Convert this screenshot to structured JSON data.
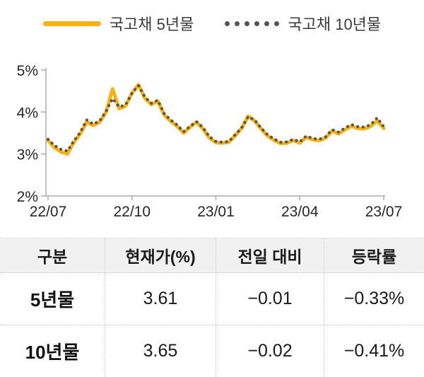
{
  "legend": {
    "series1_label": "국고채 5년물",
    "series2_label": "국고채 10년물"
  },
  "colors": {
    "accent_yellow": "#F8B312",
    "dot_gray": "#57534E",
    "axis_gray": "#ABABAB",
    "text_dark": "#262626",
    "header_bg": "#F1F1F1"
  },
  "chart_data": {
    "type": "line",
    "title": "",
    "xlabel": "",
    "ylabel": "",
    "ylim": [
      2,
      5
    ],
    "grid": false,
    "legend_position": "top",
    "x_tick_labels": [
      "22/07",
      "22/10",
      "23/01",
      "23/04",
      "23/07"
    ],
    "y_tick_labels": [
      "5%",
      "4%",
      "3%",
      "2%"
    ],
    "series": [
      {
        "name": "국고채 5년물",
        "style": "solid",
        "color": "#F8B312",
        "values": [
          3.32,
          3.15,
          3.05,
          3.0,
          3.28,
          3.48,
          3.76,
          3.68,
          3.76,
          4.0,
          4.55,
          4.08,
          4.14,
          4.45,
          4.65,
          4.33,
          4.18,
          4.26,
          3.93,
          3.78,
          3.66,
          3.5,
          3.64,
          3.76,
          3.6,
          3.38,
          3.27,
          3.26,
          3.28,
          3.44,
          3.61,
          3.9,
          3.79,
          3.6,
          3.43,
          3.33,
          3.25,
          3.26,
          3.32,
          3.26,
          3.4,
          3.34,
          3.32,
          3.38,
          3.55,
          3.48,
          3.58,
          3.66,
          3.61,
          3.6,
          3.66,
          3.79,
          3.61
        ]
      },
      {
        "name": "국고채 10년물",
        "style": "dotted",
        "color": "#57534E",
        "values": [
          3.35,
          3.2,
          3.11,
          3.07,
          3.31,
          3.52,
          3.81,
          3.71,
          3.79,
          4.02,
          4.32,
          4.12,
          4.17,
          4.45,
          4.63,
          4.36,
          4.21,
          4.28,
          3.96,
          3.81,
          3.69,
          3.53,
          3.66,
          3.77,
          3.63,
          3.41,
          3.3,
          3.28,
          3.3,
          3.46,
          3.63,
          3.89,
          3.81,
          3.62,
          3.46,
          3.36,
          3.28,
          3.29,
          3.35,
          3.29,
          3.43,
          3.37,
          3.35,
          3.41,
          3.58,
          3.52,
          3.62,
          3.7,
          3.65,
          3.64,
          3.7,
          3.86,
          3.65
        ]
      }
    ]
  },
  "table": {
    "headers": [
      "구분",
      "현재가(%)",
      "전일 대비",
      "등락률"
    ],
    "rows": [
      {
        "label": "5년물",
        "current": "3.61",
        "change": "−0.01",
        "pct": "−0.33%"
      },
      {
        "label": "10년물",
        "current": "3.65",
        "change": "−0.02",
        "pct": "−0.41%"
      }
    ]
  }
}
